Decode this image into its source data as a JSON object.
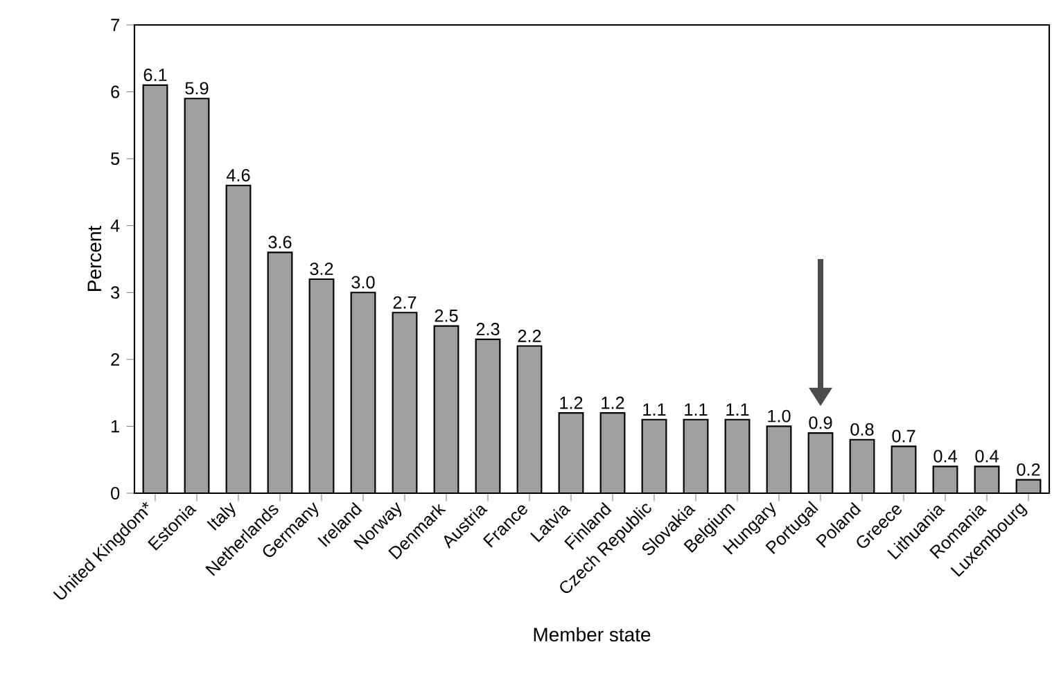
{
  "chart_data": {
    "type": "bar",
    "xlabel": "Member state",
    "ylabel": "Percent",
    "categories": [
      "United Kingdom*",
      "Estonia",
      "Italy",
      "Netherlands",
      "Germany",
      "Ireland",
      "Norway",
      "Denmark",
      "Austria",
      "France",
      "Latvia",
      "Finland",
      "Czech Republic",
      "Slovakia",
      "Belgium",
      "Hungary",
      "Portugal",
      "Poland",
      "Greece",
      "Lithuania",
      "Romania",
      "Luxembourg"
    ],
    "values": [
      6.1,
      5.9,
      4.6,
      3.6,
      3.2,
      3.0,
      2.7,
      2.5,
      2.3,
      2.2,
      1.2,
      1.2,
      1.1,
      1.1,
      1.1,
      1.0,
      0.9,
      0.8,
      0.7,
      0.4,
      0.4,
      0.2
    ],
    "value_labels": [
      "6.1",
      "5.9",
      "4.6",
      "3.6",
      "3.2",
      "3.0",
      "2.7",
      "2.5",
      "2.3",
      "2.2",
      "1.2",
      "1.2",
      "1.1",
      "1.1",
      "1.1",
      "1.0",
      "0.9",
      "0.8",
      "0.7",
      "0.4",
      "0.4",
      "0.2"
    ],
    "color": "#a0a0a0",
    "ylim": [
      0,
      7
    ],
    "yticks": [
      0,
      1,
      2,
      3,
      4,
      5,
      6,
      7
    ]
  }
}
